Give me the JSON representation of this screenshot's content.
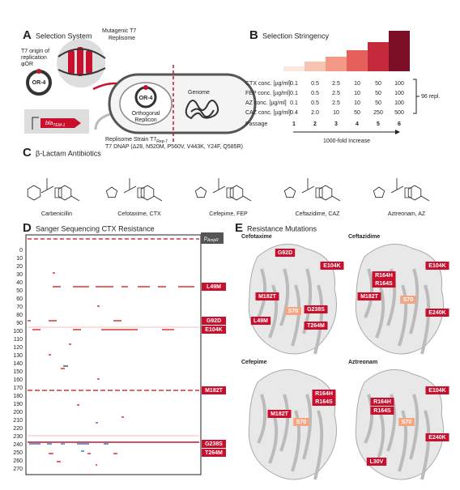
{
  "panel_a": {
    "letter": "A",
    "title": "Selection System",
    "origin_label": [
      "T7 origin of",
      "replication",
      "φOR"
    ],
    "replisome_label": [
      "Mutagenic T7",
      "Replisome"
    ],
    "plasmid_label": "OR-4",
    "gene_label": "bla",
    "gene_subscript": "TEM-1",
    "replicon_plasmid_label": "OR-4",
    "replicon_label": [
      "Orthogonal",
      "Replicon"
    ],
    "genome_label": "Genome",
    "strain_label": "Replisome Strain T7",
    "strain_subscript": "Rep-7",
    "dnap_label": "T7 DNAP (Δ28, N520M, P560V, V443K, Y24F, Q585R)"
  },
  "panel_b": {
    "letter": "B",
    "title": "Selection Stringency",
    "rows": [
      {
        "label": "CTX conc. [µg/ml]",
        "values": [
          "0.1",
          "0.5",
          "2.5",
          "10",
          "50",
          "100"
        ]
      },
      {
        "label": "FEP conc. [µg/ml]",
        "values": [
          "0.1",
          "0.5",
          "2.5",
          "10",
          "50",
          "100"
        ]
      },
      {
        "label": "AZ conc. [µg/ml]",
        "values": [
          "0.1",
          "0.5",
          "2.5",
          "10",
          "50",
          "100"
        ]
      },
      {
        "label": "CAZ conc. [µg/ml]",
        "values": [
          "0.4",
          "2.0",
          "10",
          "50",
          "250",
          "500"
        ]
      },
      {
        "label": "Passage",
        "values": [
          "1",
          "2",
          "3",
          "4",
          "5",
          "6"
        ]
      }
    ],
    "replicates_label": "96 repl.",
    "increase_label": "1000-fold Increase"
  },
  "panel_c": {
    "letter": "C",
    "title": "β-Lactam Antibiotics",
    "antibiotics": [
      "Carbenicillin",
      "Cefotaxime, CTX",
      "Cefepime, FEP",
      "Ceftazidime, CAZ",
      "Aztreonam, AZ"
    ]
  },
  "panel_d": {
    "letter": "D",
    "title": "Sanger Sequencing CTX Resistance",
    "header": "p",
    "header_subscript": "AmpR",
    "positions": [
      "0",
      "10",
      "20",
      "30",
      "40",
      "50",
      "60",
      "70",
      "80",
      "90",
      "100",
      "110",
      "120",
      "130",
      "140",
      "150",
      "160",
      "170",
      "180",
      "190",
      "200",
      "210",
      "220",
      "230",
      "240",
      "250",
      "260",
      "270"
    ],
    "mutations": [
      "L49M",
      "G92D",
      "E104K",
      "M182T",
      "G238S",
      "T264M"
    ]
  },
  "panel_e": {
    "letter": "E",
    "title": "Resistance Mutations",
    "structures": [
      {
        "name": "Cefotaxime",
        "labels": [
          "G92D",
          "E104K",
          "M182T",
          "L49M",
          "G238S",
          "T264M",
          "S70"
        ]
      },
      {
        "name": "Ceftazidime",
        "labels": [
          "R164H",
          "E104K",
          "R164S",
          "M182T",
          "S70",
          "E240K"
        ]
      },
      {
        "name": "Cefepime",
        "labels": [
          "R164H",
          "R164S",
          "M182T",
          "S70"
        ]
      },
      {
        "name": "Aztreonam",
        "labels": [
          "R164H",
          "E104K",
          "R164S",
          "S70",
          "E240K",
          "L30V"
        ]
      }
    ]
  }
}
